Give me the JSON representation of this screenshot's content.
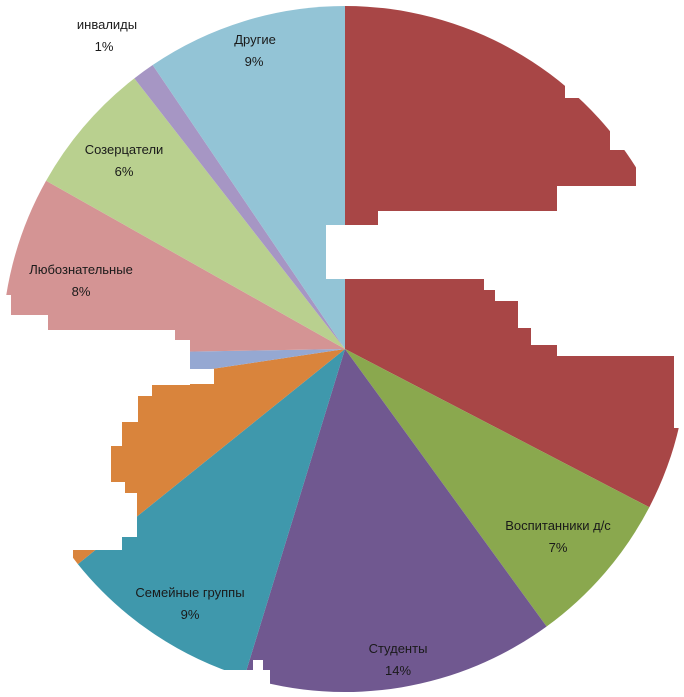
{
  "chart_data": {
    "type": "pie",
    "title": "",
    "slices": [
      {
        "label": "",
        "value": 31,
        "percent_label": "",
        "color": "#a84646"
      },
      {
        "label": "Воспитанники д/с",
        "value": 7,
        "percent_label": "7%",
        "color": "#8aa84e"
      },
      {
        "label": "Студенты",
        "value": 14,
        "percent_label": "14%",
        "color": "#705890"
      },
      {
        "label": "Семейные группы",
        "value": 9,
        "percent_label": "9%",
        "color": "#3f98ac"
      },
      {
        "label": "",
        "value": 8,
        "percent_label": "",
        "color": "#d9843c"
      },
      {
        "label": "",
        "value": 2,
        "percent_label": "",
        "color": "#95a8d2"
      },
      {
        "label": "Любознательные",
        "value": 8,
        "percent_label": "8%",
        "color": "#d49494"
      },
      {
        "label": "Созерцатели",
        "value": 6,
        "percent_label": "6%",
        "color": "#b9d08f"
      },
      {
        "label": "инвалиды",
        "value": 1,
        "percent_label": "1%",
        "color": "#a696c4"
      },
      {
        "label": "Другие",
        "value": 9,
        "percent_label": "9%",
        "color": "#93c4d6"
      }
    ]
  }
}
